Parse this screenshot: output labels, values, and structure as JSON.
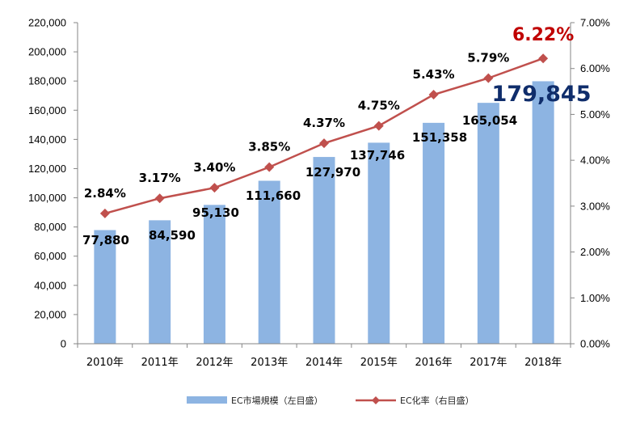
{
  "chart_data": {
    "type": "bar+line",
    "categories": [
      "2010年",
      "2011年",
      "2012年",
      "2013年",
      "2014年",
      "2015年",
      "2016年",
      "2017年",
      "2018年"
    ],
    "series": [
      {
        "name": "EC市場規模（左目盛）",
        "type": "bar",
        "axis": "left",
        "values": [
          77880,
          84590,
          95130,
          111660,
          127970,
          137746,
          151358,
          165054,
          179845
        ],
        "labels": [
          "77,880",
          "84,590",
          "95,130",
          "111,660",
          "127,970",
          "137,746",
          "151,358",
          "165,054",
          "179,845"
        ],
        "color": "#8db4e2"
      },
      {
        "name": "EC化率（右目盛）",
        "type": "line",
        "axis": "right",
        "values": [
          2.84,
          3.17,
          3.4,
          3.85,
          4.37,
          4.75,
          5.43,
          5.79,
          6.22
        ],
        "labels": [
          "2.84%",
          "3.17%",
          "3.40%",
          "3.85%",
          "4.37%",
          "4.75%",
          "5.43%",
          "5.79%",
          "6.22%"
        ],
        "color": "#c0504d"
      }
    ],
    "y_left": {
      "lim": [
        0,
        220000
      ],
      "ticks": [
        "0",
        "20,000",
        "40,000",
        "60,000",
        "80,000",
        "100,000",
        "120,000",
        "140,000",
        "160,000",
        "180,000",
        "200,000",
        "220,000"
      ]
    },
    "y_right": {
      "lim": [
        0,
        7
      ],
      "ticks": [
        "0.00%",
        "1.00%",
        "2.00%",
        "3.00%",
        "4.00%",
        "5.00%",
        "6.00%",
        "7.00%"
      ]
    },
    "grid": false,
    "legend_position": "bottom",
    "highlight_colors": {
      "bar_last": "#0f2d6b",
      "rate_last": "#c00000"
    }
  }
}
